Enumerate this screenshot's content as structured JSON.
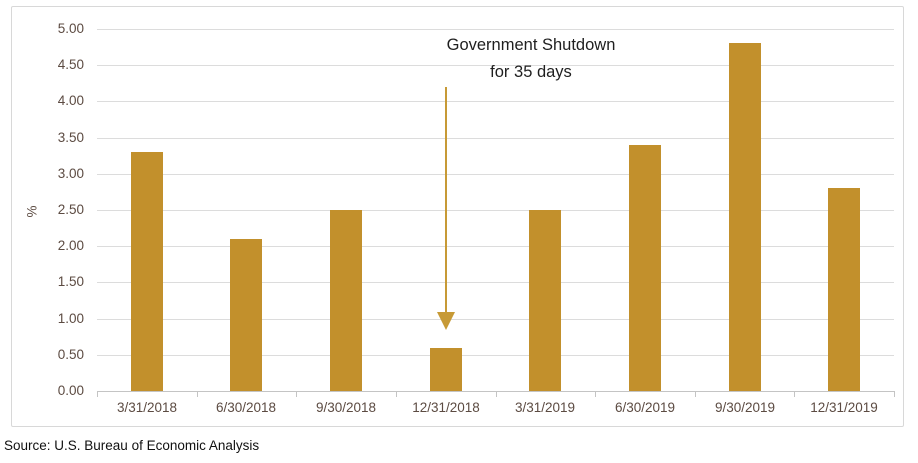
{
  "chart_data": {
    "type": "bar",
    "title": "",
    "categories": [
      "3/31/2018",
      "6/30/2018",
      "9/30/2018",
      "12/31/2018",
      "3/31/2019",
      "6/30/2019",
      "9/30/2019",
      "12/31/2019"
    ],
    "values": [
      3.3,
      2.1,
      2.5,
      0.6,
      2.5,
      3.4,
      4.8,
      2.8
    ],
    "xlabel": "",
    "ylabel": "%",
    "ylim": [
      0,
      5
    ],
    "ytick_step": 0.5,
    "ytick_labels": [
      "5.00",
      "4.50",
      "4.00",
      "3.50",
      "3.00",
      "2.50",
      "2.00",
      "1.50",
      "1.00",
      "0.50",
      "0.00"
    ],
    "grid": "horizontal",
    "legend": "none",
    "bar_color": "#C2902C",
    "gridline_color": "#DCDCDC",
    "axis_label_color": "#5C4B42",
    "annotation": {
      "line1": "Government Shutdown",
      "line2": "for 35 days",
      "text_color": "#1F1F1F",
      "arrow_color": "#C79A36",
      "target_category": "12/31/2018"
    }
  },
  "footer": {
    "source": "Source: U.S. Bureau of Economic Analysis"
  }
}
